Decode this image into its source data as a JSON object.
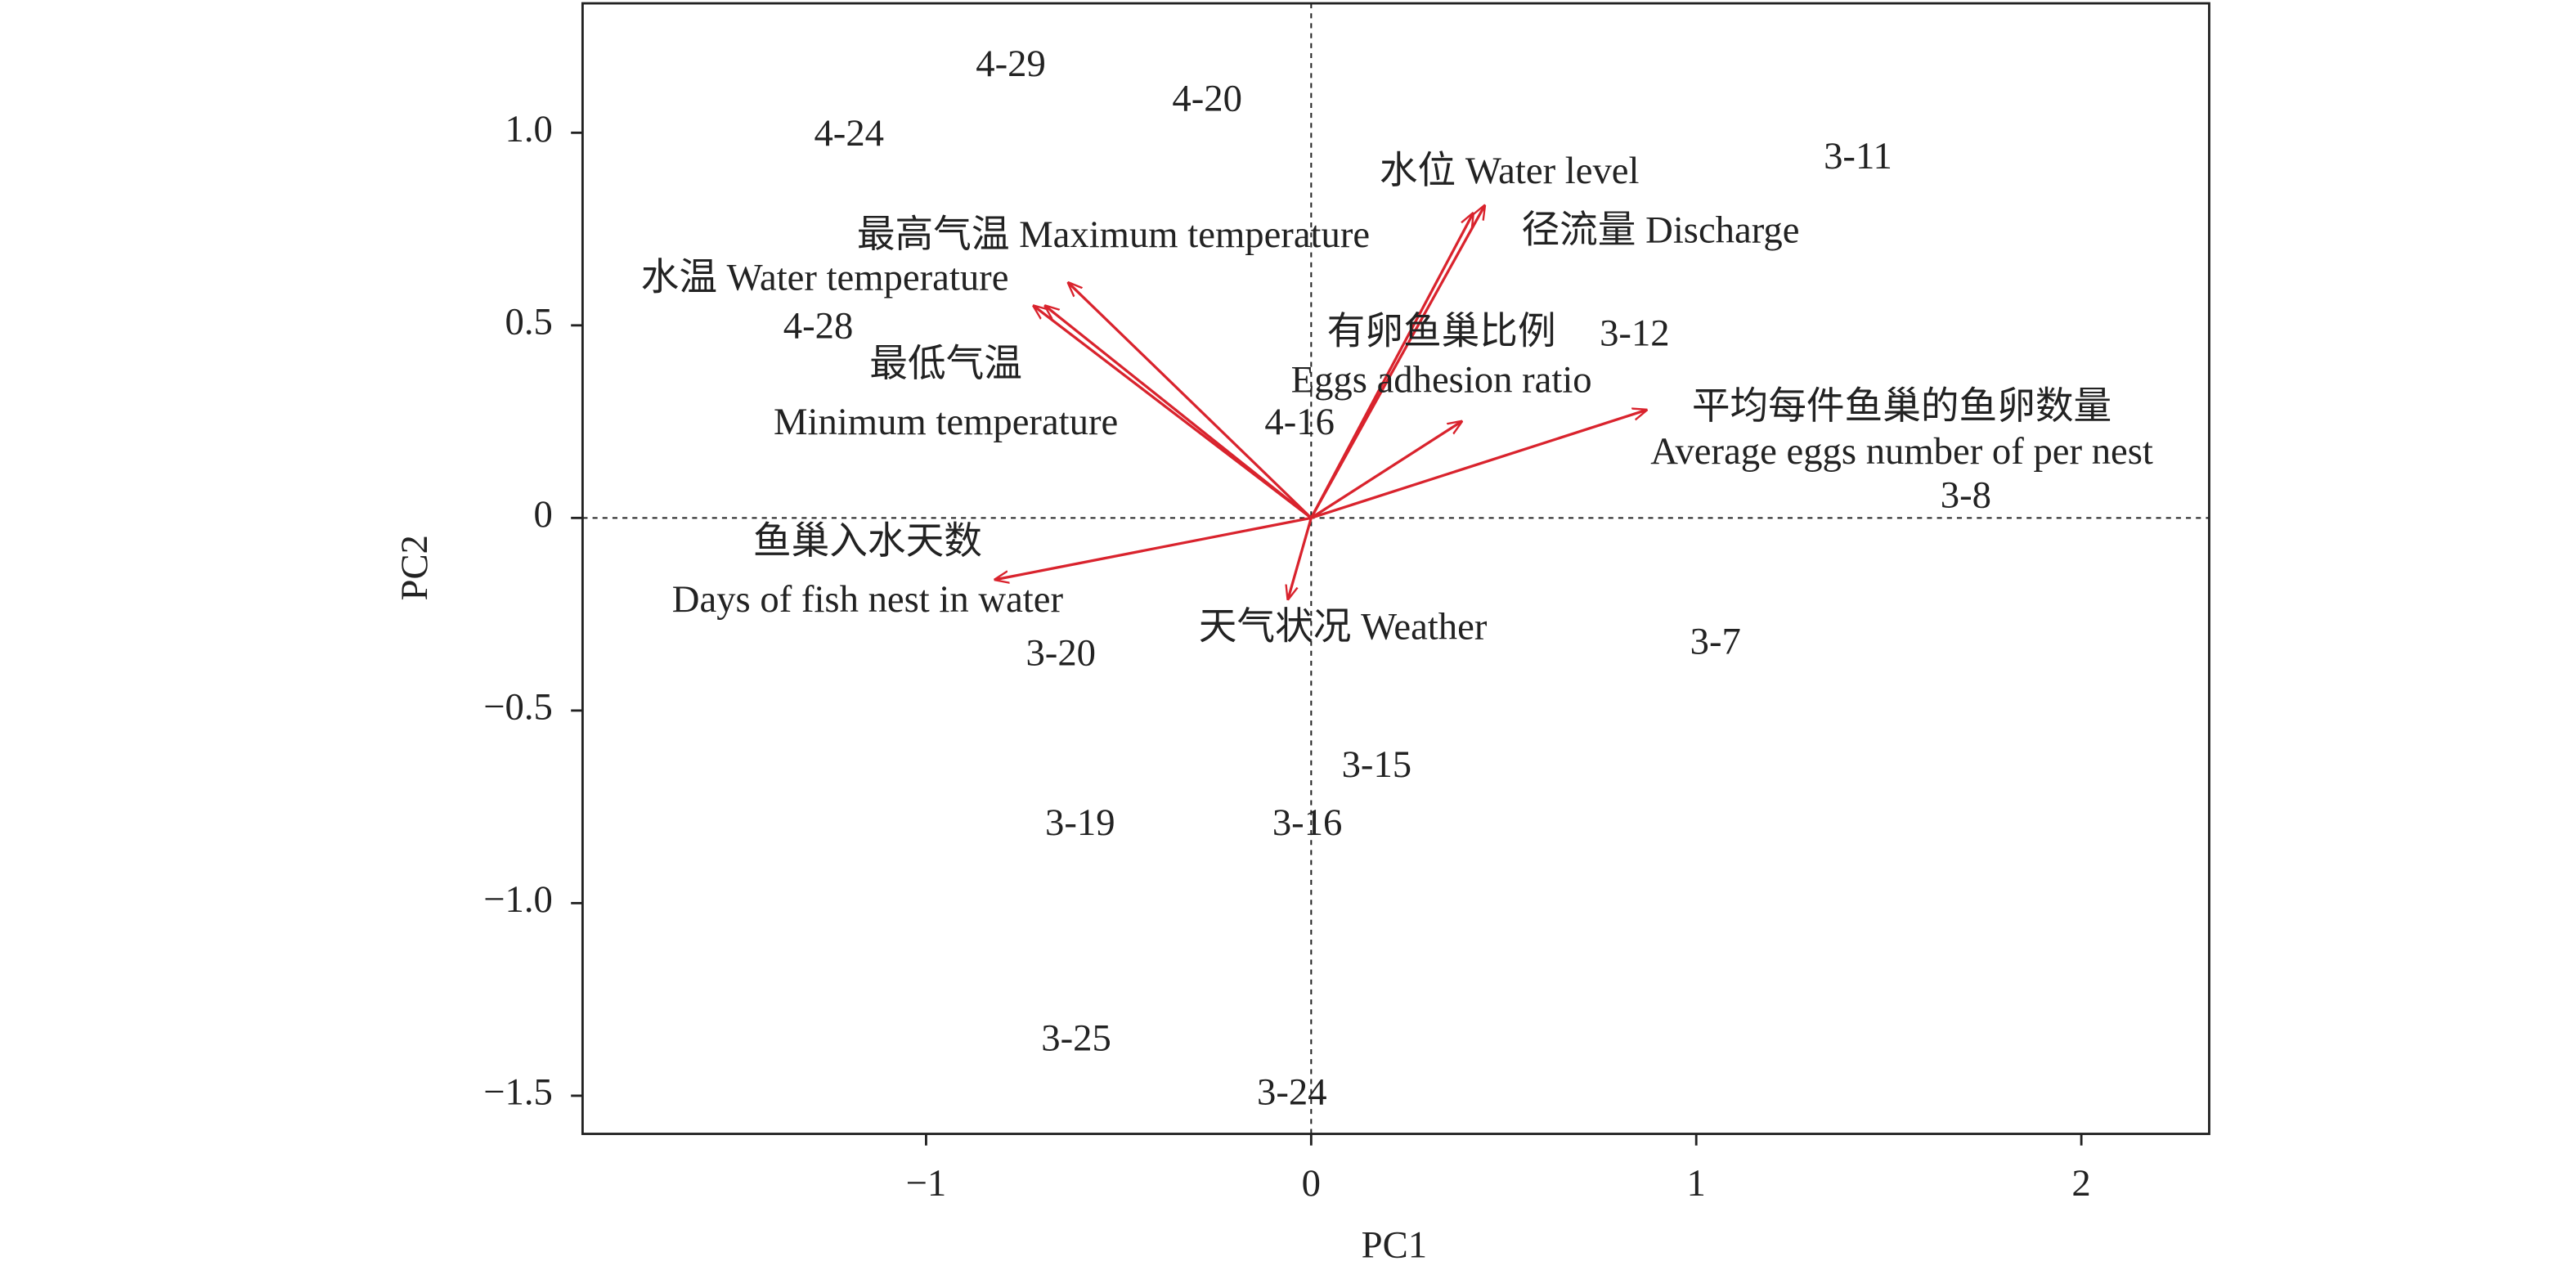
{
  "chart_data": {
    "type": "biplot",
    "x_label": "PC1",
    "y_label": "PC2",
    "xlim": [
      -1.892,
      2.332
    ],
    "ylim": [
      -1.599,
      1.336
    ],
    "xticks": [
      {
        "value": -1,
        "label": "−1"
      },
      0,
      1,
      2
    ],
    "yticks": [
      {
        "value": 1.0,
        "label": "1.0"
      },
      0.5,
      0,
      {
        "value": -0.5,
        "label": "−0.5"
      },
      {
        "value": -1.0,
        "label": "−1.0"
      },
      {
        "value": -1.5,
        "label": "−1.5"
      }
    ],
    "zero_lines": true,
    "arrow_color": "#d9232d",
    "samples": {
      "labels": [
        "4-29",
        "4-20",
        "4-24",
        "3-11",
        "4-28",
        "3-12",
        "4-16",
        "3-8",
        "3-7",
        "3-20",
        "3-15",
        "3-19",
        "3-16",
        "3-25",
        "3-24"
      ],
      "x": [
        -0.78,
        -0.27,
        -1.2,
        1.42,
        -1.28,
        0.84,
        -0.03,
        1.7,
        1.05,
        -0.65,
        0.17,
        -0.6,
        -0.01,
        -0.61,
        -0.05
      ],
      "y": [
        1.17,
        1.08,
        0.99,
        0.93,
        0.49,
        0.47,
        0.24,
        0.05,
        -0.33,
        -0.36,
        -0.65,
        -0.8,
        -0.8,
        -1.36,
        -1.5
      ]
    },
    "loadings": [
      {
        "label": [
          "水位 Water level"
        ],
        "x": 0.45,
        "y": 0.81
      },
      {
        "label": [
          "径流量 Discharge"
        ],
        "x": 0.42,
        "y": 0.79
      },
      {
        "label": [
          "最高气温 Maximum temperature"
        ],
        "x": -0.63,
        "y": 0.61
      },
      {
        "label": [
          "水温 Water temperature"
        ],
        "x": -0.72,
        "y": 0.55
      },
      {
        "label": [
          "最低气温",
          "Minimum temperature"
        ],
        "x": -0.69,
        "y": 0.55
      },
      {
        "label": [
          "有卵鱼巢比例",
          "Eggs adhesion ratio"
        ],
        "x": 0.39,
        "y": 0.25
      },
      {
        "label": [
          "平均每件鱼巢的鱼卵数量",
          "Average eggs number of per nest"
        ],
        "x": 0.87,
        "y": 0.28
      },
      {
        "label": [
          "鱼巢入水天数",
          "Days of fish nest in water"
        ],
        "x": -0.82,
        "y": -0.16
      },
      {
        "label": [
          "天气状况 Weather"
        ],
        "x": -0.06,
        "y": -0.21
      }
    ]
  }
}
